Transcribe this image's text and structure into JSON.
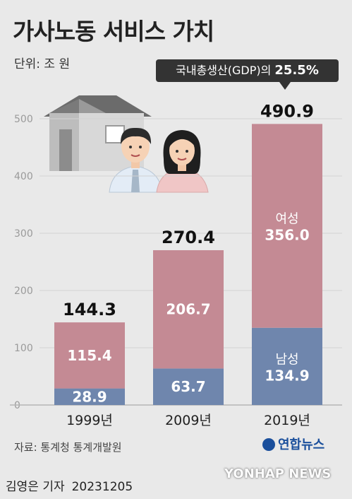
{
  "title": "가사노동 서비스 가치",
  "unit_label": "단위: 조 원",
  "callout": {
    "prefix": "국내총생산(GDP)의",
    "value": "25.5%"
  },
  "source": "자료: 통계청 통계개발원",
  "logo_text": "연합뉴스",
  "reporter": "김영은 기자",
  "date": "20231205",
  "watermark": "YONHAP NEWS",
  "colors": {
    "female": "#c48a94",
    "male": "#6f86ad",
    "background": "#e9e9e9",
    "grid": "#d2d2d2"
  },
  "chart_data": {
    "type": "bar",
    "stacked": true,
    "categories": [
      "1999년",
      "2009년",
      "2019년"
    ],
    "series": [
      {
        "name": "남성",
        "values": [
          28.9,
          63.7,
          134.9
        ]
      },
      {
        "name": "여성",
        "values": [
          115.4,
          206.7,
          356.0
        ]
      }
    ],
    "totals": [
      144.3,
      270.4,
      490.9
    ],
    "total_labels": [
      "144.3",
      "270.4",
      "490.9"
    ],
    "male_labels": [
      "28.9",
      "63.7",
      "134.9"
    ],
    "female_labels": [
      "115.4",
      "206.7",
      "356.0"
    ],
    "series_inline_labels": {
      "female": "여성",
      "male": "남성"
    },
    "yticks": [
      0,
      100,
      200,
      300,
      400,
      500
    ],
    "ylim": [
      0,
      500
    ],
    "grid": true,
    "title": "가사노동 서비스 가치",
    "xlabel": "",
    "ylabel": ""
  }
}
